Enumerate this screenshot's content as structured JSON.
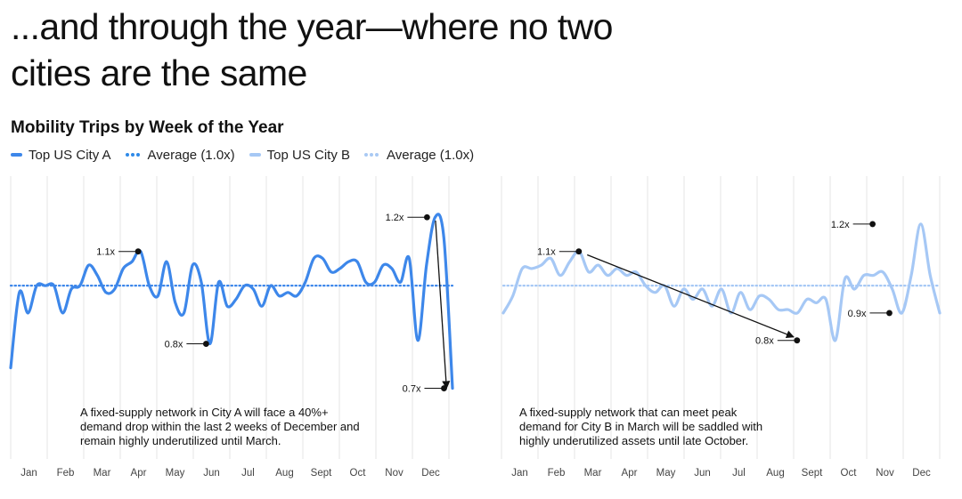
{
  "headline": {
    "line1": "...and through the year—where no two",
    "line2": "cities are the same"
  },
  "subtitle": "Mobility Trips by Week of the Year",
  "legend": [
    {
      "label": "Top US City A",
      "style": "solid",
      "color": "#3d87ea"
    },
    {
      "label": "Average (1.0x)",
      "style": "dotted",
      "color": "#2f8ae8"
    },
    {
      "label": "Top US City B",
      "style": "solid",
      "color": "#a6c8f5"
    },
    {
      "label": "Average (1.0x)",
      "style": "dotted",
      "color": "#a9c9f4"
    }
  ],
  "chart_data": [
    {
      "type": "line",
      "series": [
        {
          "name": "Top US City A",
          "color": "#3d87ea"
        }
      ],
      "average_label": "Average (1.0x)",
      "average_value": 1.0,
      "x_tick_labels": [
        "Jan",
        "Feb",
        "Mar",
        "Apr",
        "May",
        "Jun",
        "Jul",
        "Aug",
        "Sept",
        "Oct",
        "Nov",
        "Dec"
      ],
      "x_range": [
        0,
        52
      ],
      "ylim": [
        0.6,
        1.25
      ],
      "grid": "vertical",
      "values": [
        0.76,
        0.98,
        0.92,
        1.0,
        1.0,
        1.0,
        0.92,
        0.99,
        1.0,
        1.06,
        1.03,
        0.98,
        0.99,
        1.05,
        1.07,
        1.1,
        1.0,
        0.97,
        1.07,
        0.95,
        0.92,
        1.06,
        1.01,
        0.83,
        1.01,
        0.94,
        0.96,
        1.0,
        0.99,
        0.94,
        1.0,
        0.97,
        0.98,
        0.97,
        1.01,
        1.08,
        1.08,
        1.04,
        1.05,
        1.07,
        1.07,
        1.01,
        1.01,
        1.06,
        1.05,
        1.01,
        1.08,
        0.84,
        1.06,
        1.2,
        1.14,
        0.7
      ],
      "annotations": [
        {
          "week": 15,
          "value": 1.1,
          "label": "1.1x"
        },
        {
          "week": 23,
          "value": 0.83,
          "label": "0.8x"
        },
        {
          "week": 49,
          "value": 1.2,
          "label": "1.2x"
        },
        {
          "week": 51,
          "value": 0.7,
          "label": "0.7x"
        }
      ],
      "arrow": {
        "from": {
          "week": 50,
          "value": 1.19
        },
        "to": {
          "week": 51.3,
          "value": 0.7
        }
      },
      "note_lines": [
        "A fixed-supply network in City A will face a 40%+",
        "demand drop within the last 2 weeks of December and",
        "remain highly underutilized until March."
      ]
    },
    {
      "type": "line",
      "series": [
        {
          "name": "Top US City B",
          "color": "#a6c8f5"
        }
      ],
      "average_label": "Average (1.0x)",
      "average_value": 1.0,
      "x_tick_labels": [
        "Jan",
        "Feb",
        "Mar",
        "Apr",
        "May",
        "Jun",
        "Jul",
        "Aug",
        "Sept",
        "Oct",
        "Nov",
        "Dec"
      ],
      "x_range": [
        0,
        52
      ],
      "ylim": [
        0.6,
        1.25
      ],
      "grid": "vertical",
      "values": [
        0.92,
        0.97,
        1.05,
        1.05,
        1.06,
        1.08,
        1.03,
        1.07,
        1.1,
        1.04,
        1.06,
        1.03,
        1.05,
        1.03,
        1.04,
        1.0,
        0.98,
        1.0,
        0.94,
        0.99,
        0.96,
        0.99,
        0.94,
        0.99,
        0.92,
        0.98,
        0.93,
        0.97,
        0.96,
        0.93,
        0.93,
        0.92,
        0.96,
        0.95,
        0.96,
        0.84,
        1.02,
        0.99,
        1.03,
        1.03,
        1.04,
        0.99,
        0.92,
        1.03,
        1.18,
        1.03,
        0.92
      ],
      "annotations": [
        {
          "week": 9,
          "value": 1.1,
          "label": "1.1x"
        },
        {
          "week": 35,
          "value": 0.84,
          "label": "0.8x"
        },
        {
          "week": 44,
          "value": 1.18,
          "label": "1.2x"
        },
        {
          "week": 46,
          "value": 0.92,
          "label": "0.9x"
        }
      ],
      "arrow": {
        "from": {
          "week": 10,
          "value": 1.09
        },
        "to": {
          "week": 34.6,
          "value": 0.85
        }
      },
      "note_lines": [
        "A fixed-supply network that can meet peak",
        "demand for City B in March will be saddled with",
        "highly underutilized assets until late October."
      ]
    }
  ]
}
